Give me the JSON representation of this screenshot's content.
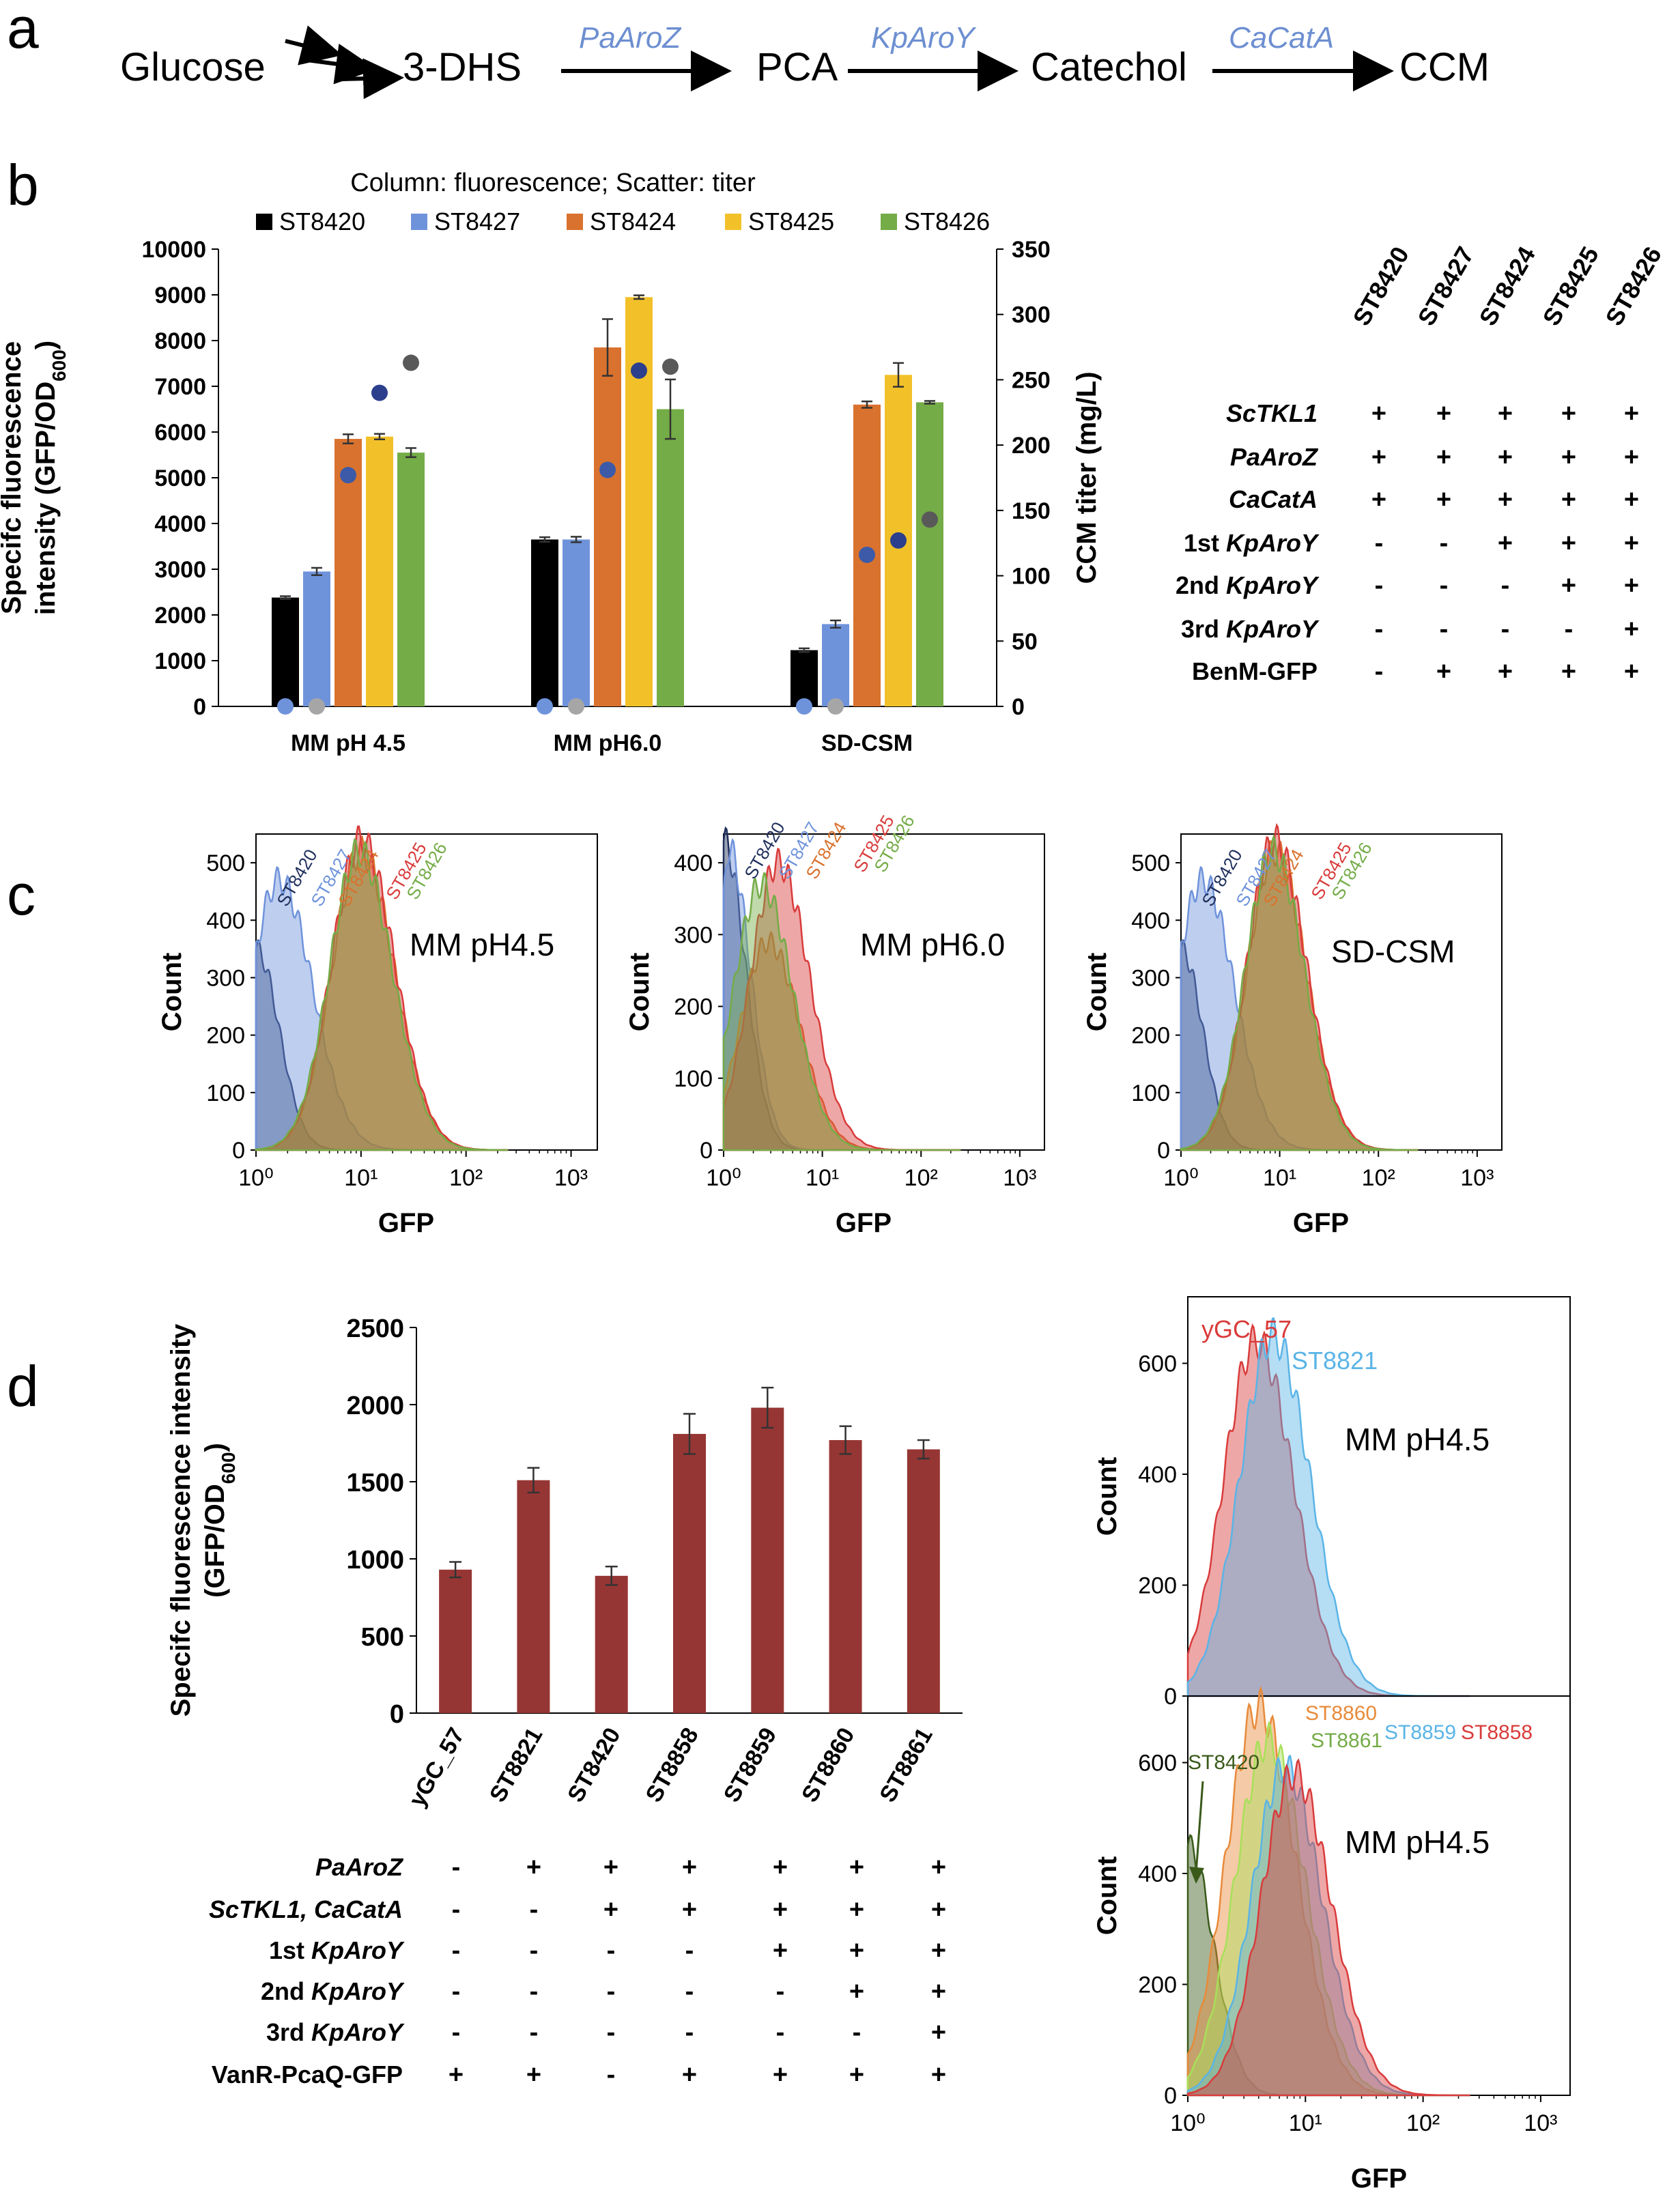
{
  "panels": {
    "a": {
      "label": "a",
      "nodes": [
        "Glucose",
        "3-DHS",
        "PCA",
        "Catechol",
        "CCM"
      ],
      "enzymes": [
        "PaAroZ",
        "KpAroY",
        "CaCatA"
      ]
    },
    "b": {
      "label": "b",
      "title": "Column: fluorescence; Scatter: titer",
      "strain_header": [
        "ST8420",
        "ST8427",
        "ST8424",
        "ST8425",
        "ST8426"
      ],
      "genotype": [
        {
          "gene": "ScTKL1",
          "italic": true,
          "prefix": "",
          "signs": [
            "+",
            "+",
            "+",
            "+",
            "+"
          ]
        },
        {
          "gene": "PaAroZ",
          "italic": true,
          "prefix": "",
          "signs": [
            "+",
            "+",
            "+",
            "+",
            "+"
          ]
        },
        {
          "gene": "CaCatA",
          "italic": true,
          "prefix": "",
          "signs": [
            "+",
            "+",
            "+",
            "+",
            "+"
          ]
        },
        {
          "gene": "KpAroY",
          "italic": true,
          "prefix": "1st ",
          "signs": [
            "-",
            "-",
            "+",
            "+",
            "+"
          ]
        },
        {
          "gene": "KpAroY",
          "italic": true,
          "prefix": "2nd ",
          "signs": [
            "-",
            "-",
            "-",
            "+",
            "+"
          ]
        },
        {
          "gene": "KpAroY",
          "italic": true,
          "prefix": "3rd ",
          "signs": [
            "-",
            "-",
            "-",
            "-",
            "+"
          ]
        },
        {
          "gene": "BenM-GFP",
          "italic": false,
          "prefix": "",
          "signs": [
            "-",
            "+",
            "+",
            "+",
            "+"
          ]
        }
      ]
    },
    "c": {
      "label": "c"
    },
    "d": {
      "label": "d",
      "genotype": [
        {
          "gene": "PaAroZ",
          "italic": true,
          "prefix": "",
          "signs": [
            "-",
            "+",
            "+",
            "+",
            "+",
            "+",
            "+"
          ]
        },
        {
          "gene": "ScTKL1, CaCatA",
          "italic": true,
          "prefix": "",
          "signs": [
            "-",
            "-",
            "+",
            "+",
            "+",
            "+",
            "+"
          ]
        },
        {
          "gene": "KpAroY",
          "italic": true,
          "prefix": "1st ",
          "signs": [
            "-",
            "-",
            "-",
            "-",
            "+",
            "+",
            "+"
          ]
        },
        {
          "gene": "KpAroY",
          "italic": true,
          "prefix": "2nd ",
          "signs": [
            "-",
            "-",
            "-",
            "-",
            "-",
            "+",
            "+"
          ]
        },
        {
          "gene": "KpAroY",
          "italic": true,
          "prefix": "3rd ",
          "signs": [
            "-",
            "-",
            "-",
            "-",
            "-",
            "-",
            "+"
          ]
        },
        {
          "gene": "VanR-PcaQ-GFP",
          "italic": false,
          "prefix": "",
          "signs": [
            "+",
            "+",
            "-",
            "+",
            "+",
            "+",
            "+"
          ]
        }
      ]
    }
  },
  "chart_data": [
    {
      "id": "b-bar",
      "type": "bar",
      "title": "Column: fluorescence; Scatter: titer",
      "categories": [
        "MM pH 4.5",
        "MM pH6.0",
        "SD-CSM"
      ],
      "ylabel": "Specifc fluorescence intensity (GFP/OD600)",
      "ylim": [
        0,
        10000
      ],
      "yticks": [
        0,
        1000,
        2000,
        3000,
        4000,
        5000,
        6000,
        7000,
        8000,
        9000,
        10000
      ],
      "y2label": "CCM titer (mg/L)",
      "y2lim": [
        0,
        350
      ],
      "y2ticks": [
        0,
        50,
        100,
        150,
        200,
        250,
        300,
        350
      ],
      "legend": "top",
      "series": [
        {
          "name": "ST8420",
          "color": "#000000",
          "dot_color": "#6f93db",
          "values": [
            2380,
            3650,
            1230
          ],
          "errors": [
            30,
            50,
            40
          ],
          "titer": [
            0,
            0,
            0
          ]
        },
        {
          "name": "ST8427",
          "color": "#6f93db",
          "dot_color": "#a6a6a6",
          "values": [
            2950,
            3650,
            1800
          ],
          "errors": [
            80,
            60,
            80
          ],
          "titer": [
            0,
            0,
            0
          ]
        },
        {
          "name": "ST8424",
          "color": "#d9722e",
          "dot_color": "#3c5aa8",
          "values": [
            5850,
            7850,
            6600
          ],
          "errors": [
            100,
            620,
            70
          ],
          "titer": [
            177,
            181,
            116
          ]
        },
        {
          "name": "ST8425",
          "color": "#f2c12a",
          "dot_color": "#2c3f8c",
          "values": [
            5900,
            8950,
            7250
          ],
          "errors": [
            60,
            40,
            260
          ],
          "titer": [
            240,
            257,
            127
          ]
        },
        {
          "name": "ST8426",
          "color": "#74ac47",
          "dot_color": "#595959",
          "values": [
            5550,
            6500,
            6650
          ],
          "errors": [
            100,
            650,
            30
          ],
          "titer": [
            263,
            260,
            143
          ]
        }
      ]
    },
    {
      "id": "c-hist",
      "type": "area",
      "panels": [
        {
          "condition": "MM pH4.5",
          "ylim": [
            0,
            550
          ],
          "yticks": [
            0,
            100,
            200,
            300,
            400,
            500
          ]
        },
        {
          "condition": "MM pH6.0",
          "ylim": [
            0,
            440
          ],
          "yticks": [
            0,
            100,
            200,
            300,
            400
          ]
        },
        {
          "condition": "SD-CSM",
          "ylim": [
            0,
            550
          ],
          "yticks": [
            0,
            100,
            200,
            300,
            400,
            500
          ]
        }
      ],
      "xlabel": "GFP",
      "ylabel": "Count",
      "xticks": [
        "10⁰",
        "10¹",
        "10²",
        "10³"
      ],
      "series": [
        {
          "name": "ST8420",
          "color": "#1f2f5c",
          "peak_log": [
            0.0,
            0.0,
            0.0
          ],
          "peak_count": [
            350,
            430,
            350
          ]
        },
        {
          "name": "ST8427",
          "color": "#6f93db",
          "peak_log": [
            0.22,
            0.05,
            0.22
          ],
          "peak_count": [
            470,
            420,
            470
          ]
        },
        {
          "name": "ST8424",
          "color": "#d9722e",
          "peak_log": [
            1.0,
            0.45,
            0.95
          ],
          "peak_count": [
            520,
            290,
            520
          ]
        },
        {
          "name": "ST8425",
          "color": "#d93b3b",
          "peak_log": [
            1.0,
            0.55,
            0.95
          ],
          "peak_count": [
            540,
            400,
            540
          ]
        },
        {
          "name": "ST8426",
          "color": "#74ac47",
          "peak_log": [
            0.98,
            0.38,
            0.93
          ],
          "peak_count": [
            520,
            370,
            520
          ]
        }
      ]
    },
    {
      "id": "d-bar",
      "type": "bar",
      "categories": [
        "yGC_57",
        "ST8821",
        "ST8420",
        "ST8858",
        "ST8859",
        "ST8860",
        "ST8861"
      ],
      "values": [
        930,
        1510,
        890,
        1810,
        1980,
        1770,
        1710
      ],
      "errors": [
        50,
        80,
        60,
        130,
        130,
        90,
        60
      ],
      "ylabel": "Specifc fluorescence intensity (GFP/OD600)",
      "ylim": [
        0,
        2500
      ],
      "yticks": [
        0,
        500,
        1000,
        1500,
        2000,
        2500
      ],
      "color": "#963634"
    },
    {
      "id": "d-hist",
      "type": "area",
      "xlabel": "GFP",
      "ylabel": "Count",
      "xticks": [
        "10⁰",
        "10¹",
        "10²",
        "10³"
      ],
      "panels": [
        {
          "condition": "MM pH4.5",
          "ylim": [
            0,
            720
          ],
          "yticks": [
            0,
            200,
            400,
            600
          ],
          "series": [
            {
              "name": "yGC_57",
              "color": "#d93b3b",
              "peak_log": 0.58,
              "peak_count": 640
            },
            {
              "name": "ST8821",
              "color": "#5ab4e6",
              "peak_log": 0.72,
              "peak_count": 650
            }
          ]
        },
        {
          "condition": "MM pH4.5",
          "ylim": [
            0,
            720
          ],
          "yticks": [
            0,
            200,
            400,
            600
          ],
          "series": [
            {
              "name": "ST8420",
              "color": "#3a5a1a",
              "peak_log": 0.0,
              "peak_count": 450
            },
            {
              "name": "ST8860",
              "color": "#e88a3a",
              "peak_log": 0.6,
              "peak_count": 700
            },
            {
              "name": "ST8861",
              "color": "#a8e05a",
              "peak_log": 0.68,
              "peak_count": 640
            },
            {
              "name": "ST8859",
              "color": "#5ab4e6",
              "peak_log": 0.82,
              "peak_count": 590
            },
            {
              "name": "ST8858",
              "color": "#d93b3b",
              "peak_log": 0.9,
              "peak_count": 580
            }
          ]
        }
      ]
    }
  ]
}
